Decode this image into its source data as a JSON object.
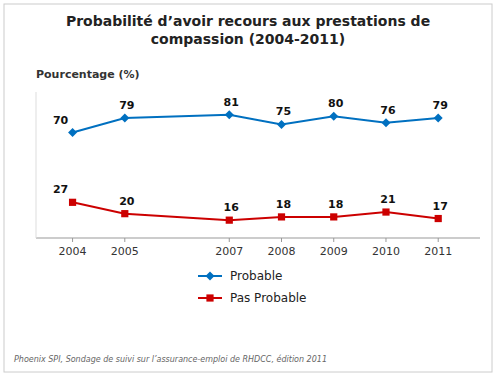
{
  "chart_data": {
    "type": "line",
    "title": "Probabilité d’avoir recours aux prestations de\ncompassion (2004-2011)",
    "ylabel": "Pourcentage (%)",
    "annotations": [
      "Phoenix SPI, Sondage de suivi sur l’assurance-emploi de RHDCC, édition 2011"
    ],
    "x": [
      2004,
      2005,
      2007,
      2008,
      2009,
      2010,
      2011
    ],
    "series": [
      {
        "name": "Probable",
        "color": "#0070C0",
        "marker": "diamond",
        "line_style": "solid",
        "values": [
          70,
          79,
          81,
          75,
          80,
          76,
          79
        ]
      },
      {
        "name": "Pas Probable",
        "color": "#CC0000",
        "marker": "square",
        "line_style": "solid",
        "values": [
          27,
          20,
          16,
          18,
          18,
          21,
          17
        ]
      }
    ],
    "xlim": [
      2003.3,
      2011.8
    ],
    "xticks": [
      2004,
      2005,
      2007,
      2008,
      2009,
      2010,
      2011
    ],
    "ylim": [
      5,
      95
    ],
    "tick_labels": "x",
    "grid": false,
    "legend": "bottom",
    "data_labels": true
  }
}
